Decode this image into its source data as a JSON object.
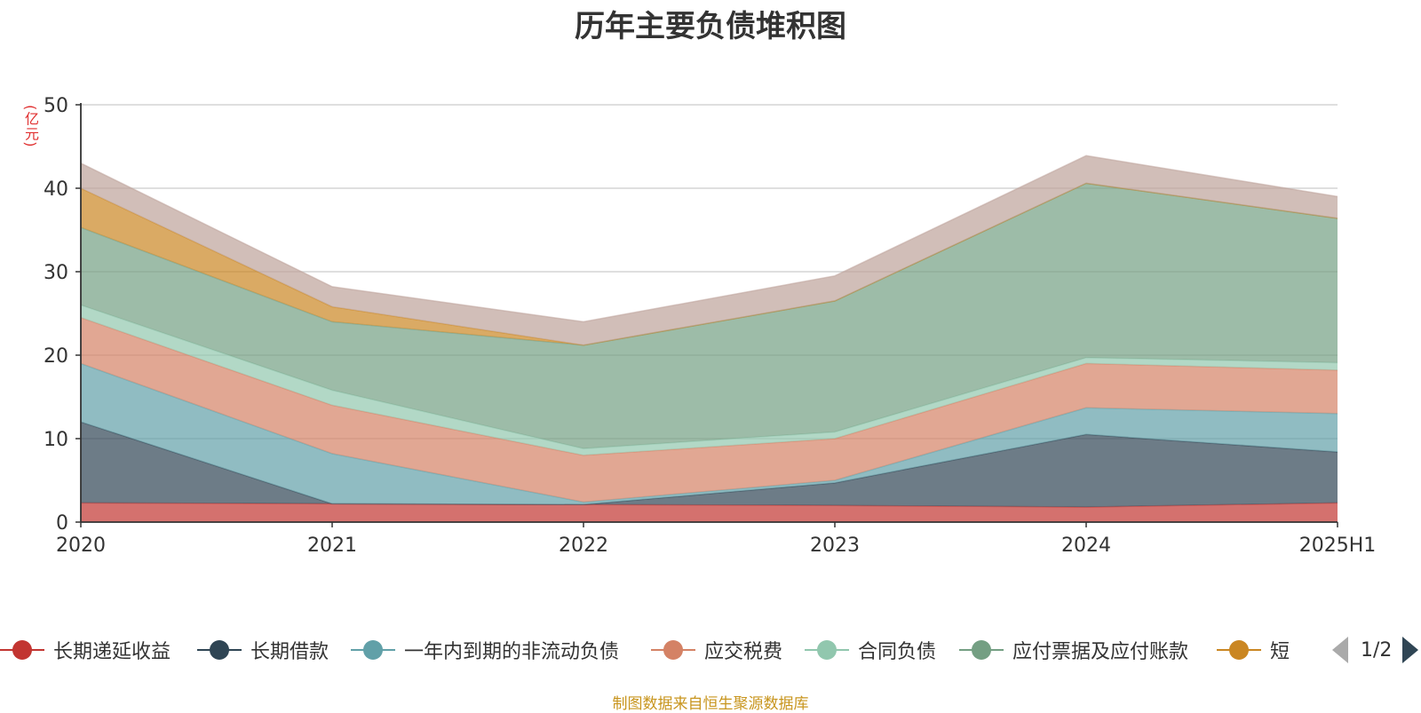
{
  "chart_data": {
    "type": "area",
    "stacked": true,
    "title": "历年主要负债堆积图",
    "ylabel": "(亿元)",
    "ylim": [
      0,
      50
    ],
    "yticks": [
      0,
      10,
      20,
      30,
      40,
      50
    ],
    "grid": true,
    "categories": [
      "2020",
      "2021",
      "2022",
      "2023",
      "2024",
      "2025H1"
    ],
    "series": [
      {
        "name": "长期递延收益",
        "color": "#c23531",
        "values": [
          2.3,
          2.2,
          2.1,
          2.0,
          1.8,
          2.3
        ]
      },
      {
        "name": "长期借款",
        "color": "#2f4554",
        "values": [
          9.7,
          0.0,
          0.0,
          2.7,
          8.7,
          6.1
        ]
      },
      {
        "name": "一年内到期的非流动负债",
        "color": "#61a0a8",
        "values": [
          7.0,
          6.0,
          0.3,
          0.3,
          3.2,
          4.6
        ]
      },
      {
        "name": "应交税费",
        "color": "#d48265",
        "values": [
          5.5,
          5.8,
          5.6,
          5.0,
          5.3,
          5.2
        ]
      },
      {
        "name": "合同负债",
        "color": "#91c7ae",
        "values": [
          1.5,
          1.8,
          0.8,
          0.8,
          0.7,
          0.9
        ]
      },
      {
        "name": "应付票据及应付账款",
        "color": "#749f83",
        "values": [
          9.3,
          8.2,
          12.4,
          15.7,
          20.9,
          17.3
        ]
      },
      {
        "name": "短",
        "color": "#ca8622",
        "values": [
          4.7,
          1.8,
          0.0,
          0.0,
          0.0,
          0.0
        ]
      },
      {
        "name": "",
        "color": "#bda29a",
        "values": [
          3.0,
          2.4,
          2.8,
          3.0,
          3.3,
          2.6
        ]
      }
    ],
    "legend_position": "bottom"
  },
  "legend": {
    "items": [
      {
        "label": "长期递延收益",
        "color": "#c23531"
      },
      {
        "label": "长期借款",
        "color": "#2f4554"
      },
      {
        "label": "一年内到期的非流动负债",
        "color": "#61a0a8"
      },
      {
        "label": "应交税费",
        "color": "#d48265"
      },
      {
        "label": "合同负债",
        "color": "#91c7ae"
      },
      {
        "label": "应付票据及应付账款",
        "color": "#749f83"
      },
      {
        "label": "短",
        "color": "#ca8622"
      }
    ],
    "page": "1/2"
  },
  "source_note": "制图数据来自恒生聚源数据库"
}
